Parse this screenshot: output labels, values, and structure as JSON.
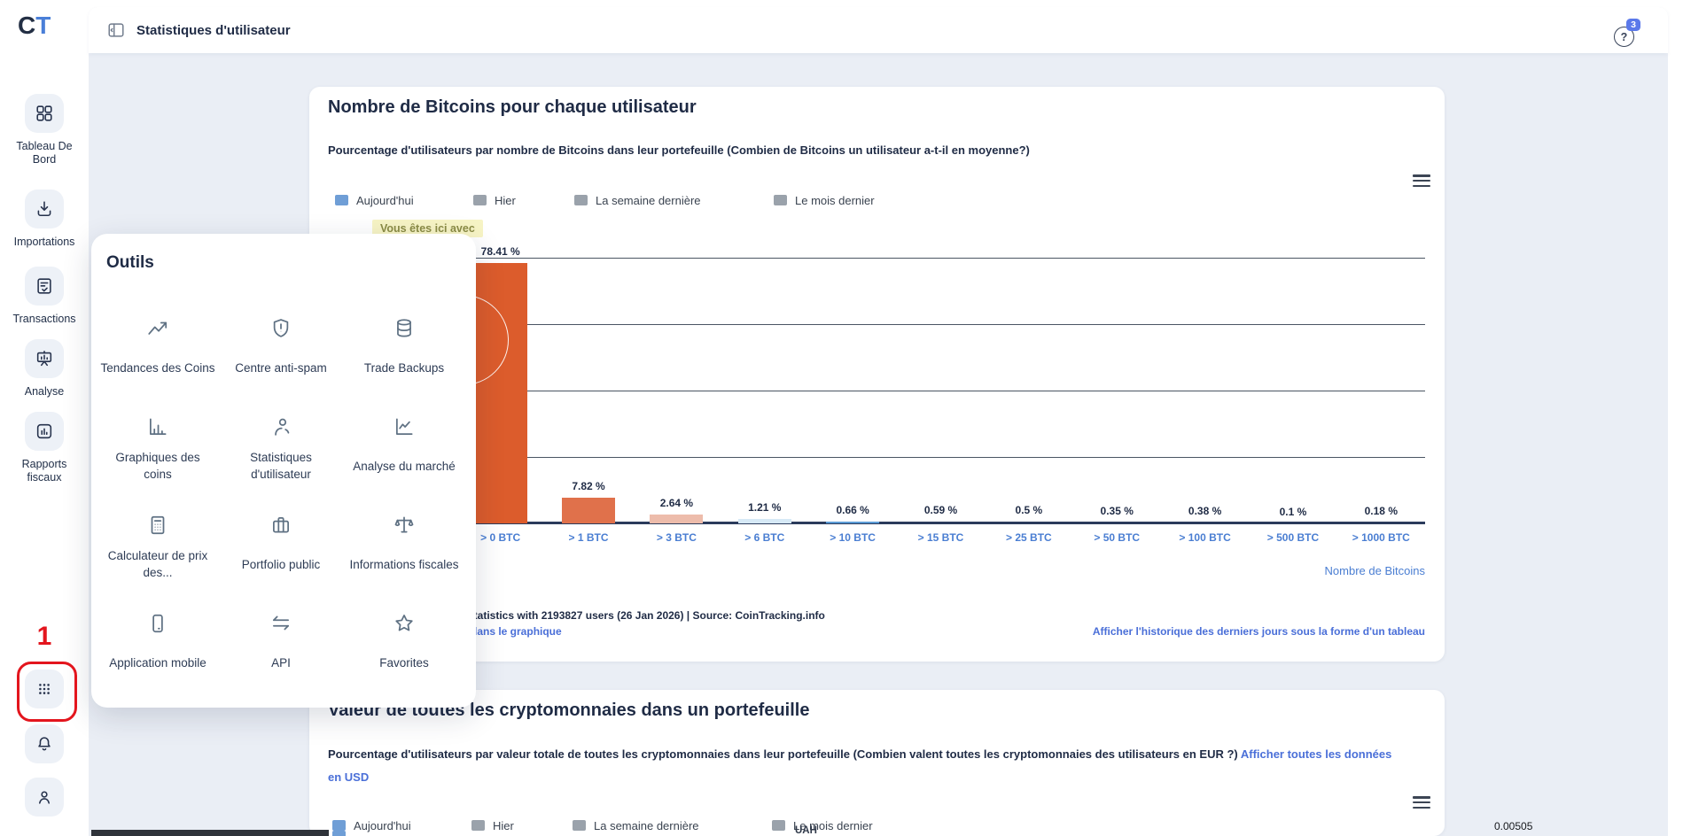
{
  "topbar": {
    "title": "Statistiques d'utilisateur",
    "help_badge_count": "3"
  },
  "sidebar": {
    "logo": {
      "c": "C",
      "t": "T"
    },
    "items": [
      {
        "label": "Tableau De Bord",
        "icon": "dashboard"
      },
      {
        "label": "Importations",
        "icon": "download"
      },
      {
        "label": "Transactions",
        "icon": "transactions-doc"
      },
      {
        "label": "Analyse",
        "icon": "analysis-board"
      },
      {
        "label": "Rapports fiscaux",
        "icon": "bar-report"
      }
    ],
    "bottom_items": [
      {
        "icon": "apps-grid"
      },
      {
        "icon": "bell"
      },
      {
        "icon": "user-profile"
      }
    ]
  },
  "annotation": {
    "step_number": "1"
  },
  "tools_popup": {
    "title": "Outils",
    "items": [
      {
        "label": "Tendances des Coins",
        "icon": "trend"
      },
      {
        "label": "Centre anti-spam",
        "icon": "shield-alert"
      },
      {
        "label": "Trade Backups",
        "icon": "database"
      },
      {
        "label": "Graphiques des coins",
        "icon": "bar-chart"
      },
      {
        "label": "Statistiques d'utilisateur",
        "icon": "user"
      },
      {
        "label": "Analyse du marché",
        "icon": "line-chart"
      },
      {
        "label": "Calculateur de prix des...",
        "icon": "calculator"
      },
      {
        "label": "Portfolio public",
        "icon": "briefcase"
      },
      {
        "label": "Informations fiscales",
        "icon": "scale"
      },
      {
        "label": "Application mobile",
        "icon": "mobile-phone"
      },
      {
        "label": "API",
        "icon": "api-arrows"
      },
      {
        "label": "Favorites",
        "icon": "star"
      }
    ]
  },
  "card1": {
    "title": "Nombre de Bitcoins pour chaque utilisateur",
    "subtitle": "Pourcentage d'utilisateurs par nombre de Bitcoins dans leur portefeuille (Combien de Bitcoins un utilisateur a-t-il en moyenne?)",
    "you_are_here_tooltip": "Vous êtes ici avec",
    "axis_label_right": "Nombre de Bitcoins",
    "footer_stats": "statistics with 2193827 users (26 Jan 2026) | Source: CoinTracking.info",
    "footer_link_left": "dans le graphique",
    "footer_link_right": "Afficher l'historique des derniers jours sous la forme d'un tableau"
  },
  "card2": {
    "title": "Valeur de toutes les cryptomonnaies dans un portefeuille",
    "subtitle": "Pourcentage d'utilisateurs par valeur totale de toutes les cryptomonnaies dans leur portefeuille (Combien valent toutes les cryptomonnaies des utilisateurs en EUR ?) ",
    "subtitle_link": "Afficher toutes les données en USD",
    "partial_axis_text": "UAH"
  },
  "page_bottom": {
    "partial_value_right": "0.00505"
  },
  "chart_data": [
    {
      "type": "bar",
      "title": "Nombre de Bitcoins pour chaque utilisateur",
      "subtitle": "Pourcentage d'utilisateurs par nombre de Bitcoins dans leur portefeuille (Combien de Bitcoins un utilisateur a-t-il en moyenne?)",
      "categories": [
        "> 0 BTC",
        "> 1 BTC",
        "> 3 BTC",
        "> 6 BTC",
        "> 10 BTC",
        "> 15 BTC",
        "> 25 BTC",
        "> 50 BTC",
        "> 100 BTC",
        "> 500 BTC",
        "> 1000 BTC"
      ],
      "values": [
        78.41,
        7.82,
        2.64,
        1.21,
        0.66,
        0.59,
        0.5,
        0.35,
        0.38,
        0.1,
        0.18
      ],
      "value_labels": [
        "78.41 %",
        "7.82 %",
        "2.64 %",
        "1.21 %",
        "0.66 %",
        "0.59 %",
        "0.5 %",
        "0.35 %",
        "0.38 %",
        "0.1 %",
        "0.18 %"
      ],
      "bar_colors": [
        "#dc5c2c",
        "#e0714b",
        "#edbcab",
        "#d6e9f6",
        "#5b9bd5",
        "",
        "",
        "",
        "",
        "",
        ""
      ],
      "xlabel": "Nombre de Bitcoins",
      "ylabel": "",
      "ylim": [
        0,
        80
      ],
      "grid": true,
      "legend": [
        "Aujourd'hui",
        "Hier",
        "La semaine dernière",
        "Le mois dernier"
      ],
      "legend_colors": [
        "#6f9ed6",
        "#9aa2ab",
        "#9aa2ab",
        "#9aa2ab"
      ],
      "legend_position": "top",
      "annotation": "Vous êtes ici avec"
    },
    {
      "type": "bar",
      "title": "Valeur de toutes les cryptomonnaies dans un portefeuille",
      "subtitle": "Pourcentage d'utilisateurs par valeur totale de toutes les cryptomonnaies dans leur portefeuille (Combien valent toutes les cryptomonnaies des utilisateurs en EUR ?)",
      "legend": [
        "Aujourd'hui",
        "Hier",
        "La semaine dernière",
        "Le mois dernier"
      ],
      "legend_colors": [
        "#6f9ed6",
        "#9aa2ab",
        "#9aa2ab",
        "#9aa2ab"
      ],
      "legend_position": "top"
    }
  ]
}
